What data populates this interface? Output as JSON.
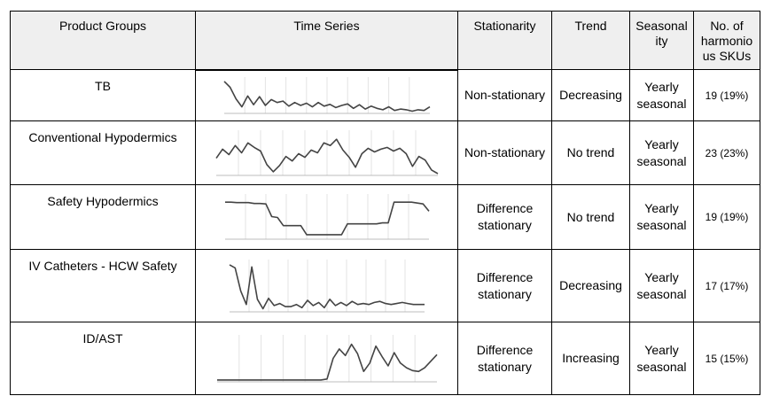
{
  "headers": {
    "product_groups": "Product Groups",
    "time_series": "Time Series",
    "stationarity": "Stationarity",
    "trend": "Trend",
    "seasonality_line1": "Seasonal",
    "seasonality_line2": "ity",
    "skus_line1": "No. of",
    "skus_line2": "harmonio",
    "skus_line3": "us SKUs"
  },
  "rows": [
    {
      "group": "TB",
      "stationarity_line1": "Non-stationary",
      "stationarity_line2": "",
      "trend": "Decreasing",
      "seasonality_line1": "Yearly",
      "seasonality_line2": "seasonal",
      "skus": "19 (19%)",
      "series": [
        88,
        72,
        40,
        18,
        48,
        24,
        46,
        22,
        38,
        30,
        34,
        20,
        30,
        22,
        28,
        18,
        30,
        20,
        25,
        16,
        22,
        26,
        14,
        24,
        12,
        20,
        14,
        10,
        18,
        8,
        12,
        10,
        6,
        10,
        8,
        18
      ]
    },
    {
      "group": "Conventional Hypodermics",
      "stationarity_line1": "Non-stationary",
      "stationarity_line2": "",
      "trend": "No trend",
      "seasonality_line1": "Yearly",
      "seasonality_line2": "seasonal",
      "skus": "23 (23%)",
      "series": [
        38,
        58,
        46,
        66,
        50,
        72,
        62,
        54,
        24,
        8,
        22,
        42,
        32,
        48,
        40,
        56,
        50,
        72,
        66,
        80,
        56,
        40,
        18,
        48,
        60,
        52,
        58,
        62,
        54,
        60,
        48,
        20,
        42,
        34,
        12,
        4
      ]
    },
    {
      "group": "Safety Hypodermics",
      "stationarity_line1": "Difference",
      "stationarity_line2": "stationary",
      "trend": "No trend",
      "seasonality_line1": "Yearly",
      "seasonality_line2": "seasonal",
      "skus": "19 (19%)",
      "series": [
        82,
        82,
        81,
        81,
        81,
        79,
        79,
        78,
        50,
        48,
        30,
        30,
        30,
        30,
        10,
        10,
        10,
        10,
        10,
        10,
        10,
        34,
        34,
        34,
        34,
        34,
        34,
        36,
        36,
        82,
        82,
        82,
        82,
        80,
        78,
        62
      ]
    },
    {
      "group": "IV Catheters - HCW Safety",
      "stationarity_line1": "Difference",
      "stationarity_line2": "stationary",
      "trend": "Decreasing",
      "seasonality_line1": "Yearly",
      "seasonality_line2": "seasonal",
      "skus": "17 (17%)",
      "series": [
        90,
        84,
        40,
        14,
        86,
        24,
        6,
        26,
        12,
        16,
        10,
        10,
        14,
        8,
        22,
        12,
        18,
        8,
        24,
        12,
        18,
        12,
        20,
        14,
        16,
        14,
        18,
        20,
        16,
        14,
        16,
        18,
        16,
        14,
        14,
        14
      ]
    },
    {
      "group": "ID/AST",
      "stationarity_line1": "Difference",
      "stationarity_line2": "stationary",
      "trend": "Increasing",
      "seasonality_line1": "Yearly",
      "seasonality_line2": "seasonal",
      "skus": "15 (15%)",
      "series": [
        4,
        4,
        4,
        4,
        4,
        4,
        4,
        4,
        4,
        4,
        4,
        4,
        4,
        4,
        4,
        4,
        4,
        4,
        6,
        50,
        70,
        56,
        80,
        60,
        22,
        40,
        76,
        54,
        34,
        62,
        40,
        30,
        24,
        22,
        30,
        44,
        58
      ]
    }
  ]
}
